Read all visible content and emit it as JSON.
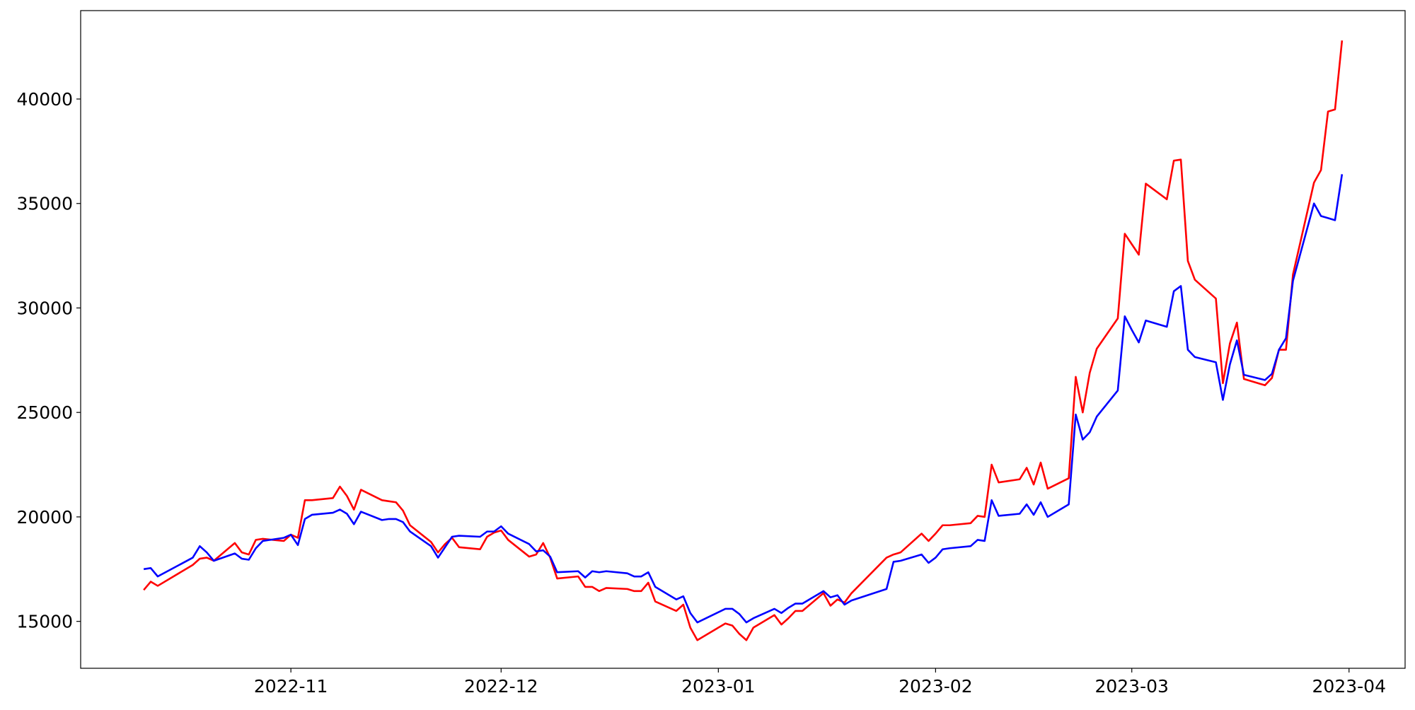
{
  "chart_data": {
    "type": "line",
    "x": [
      "2022-10-11",
      "2022-10-12",
      "2022-10-13",
      "2022-10-18",
      "2022-10-19",
      "2022-10-20",
      "2022-10-21",
      "2022-10-24",
      "2022-10-25",
      "2022-10-26",
      "2022-10-27",
      "2022-10-28",
      "2022-10-31",
      "2022-11-01",
      "2022-11-02",
      "2022-11-03",
      "2022-11-04",
      "2022-11-07",
      "2022-11-08",
      "2022-11-09",
      "2022-11-10",
      "2022-11-11",
      "2022-11-14",
      "2022-11-15",
      "2022-11-16",
      "2022-11-17",
      "2022-11-18",
      "2022-11-21",
      "2022-11-22",
      "2022-11-23",
      "2022-11-24",
      "2022-11-25",
      "2022-11-28",
      "2022-11-29",
      "2022-11-30",
      "2022-12-01",
      "2022-12-02",
      "2022-12-05",
      "2022-12-06",
      "2022-12-07",
      "2022-12-08",
      "2022-12-09",
      "2022-12-12",
      "2022-12-13",
      "2022-12-14",
      "2022-12-15",
      "2022-12-16",
      "2022-12-19",
      "2022-12-20",
      "2022-12-21",
      "2022-12-22",
      "2022-12-23",
      "2022-12-26",
      "2022-12-27",
      "2022-12-28",
      "2022-12-29",
      "2023-01-02",
      "2023-01-03",
      "2023-01-04",
      "2023-01-05",
      "2023-01-06",
      "2023-01-09",
      "2023-01-10",
      "2023-01-11",
      "2023-01-12",
      "2023-01-13",
      "2023-01-16",
      "2023-01-17",
      "2023-01-18",
      "2023-01-19",
      "2023-01-20",
      "2023-01-25",
      "2023-01-26",
      "2023-01-27",
      "2023-01-30",
      "2023-01-31",
      "2023-02-01",
      "2023-02-02",
      "2023-02-03",
      "2023-02-06",
      "2023-02-07",
      "2023-02-08",
      "2023-02-09",
      "2023-02-10",
      "2023-02-13",
      "2023-02-14",
      "2023-02-15",
      "2023-02-16",
      "2023-02-17",
      "2023-02-20",
      "2023-02-21",
      "2023-02-22",
      "2023-02-23",
      "2023-02-24",
      "2023-02-27",
      "2023-02-28",
      "2023-03-01",
      "2023-03-02",
      "2023-03-03",
      "2023-03-06",
      "2023-03-07",
      "2023-03-08",
      "2023-03-09",
      "2023-03-10",
      "2023-03-13",
      "2023-03-14",
      "2023-03-15",
      "2023-03-16",
      "2023-03-17",
      "2023-03-20",
      "2023-03-21",
      "2023-03-22",
      "2023-03-23",
      "2023-03-24",
      "2023-03-27",
      "2023-03-28",
      "2023-03-29",
      "2023-03-30",
      "2023-03-31"
    ],
    "series": [
      {
        "color": "#ff0000",
        "values": [
          16500,
          16900,
          16700,
          17700,
          18000,
          18050,
          17900,
          18750,
          18300,
          18200,
          18900,
          18950,
          18850,
          19150,
          19000,
          20800,
          20800,
          20900,
          21450,
          21000,
          20350,
          21300,
          20800,
          20750,
          20700,
          20300,
          19600,
          18800,
          18300,
          18700,
          19000,
          18550,
          18450,
          19050,
          19250,
          19350,
          18900,
          18100,
          18200,
          18750,
          18050,
          17050,
          17150,
          16650,
          16650,
          16450,
          16600,
          16550,
          16450,
          16450,
          16850,
          15950,
          15500,
          15800,
          14700,
          14100,
          14900,
          14800,
          14400,
          14100,
          14700,
          15300,
          14850,
          15150,
          15500,
          15500,
          16350,
          15750,
          16050,
          15900,
          16350,
          18050,
          18200,
          18300,
          19200,
          18850,
          19200,
          19600,
          19600,
          19700,
          20050,
          20000,
          22500,
          21650,
          21800,
          22350,
          21550,
          22600,
          21350,
          21850,
          26700,
          25000,
          26900,
          28050,
          29500,
          33550,
          33050,
          32550,
          35950,
          35200,
          37050,
          37100,
          32250,
          31350,
          30450,
          26400,
          28300,
          29300,
          26600,
          26300,
          26650,
          28000,
          28000,
          31600,
          36000,
          36600,
          39400,
          39500,
          42800
        ]
      },
      {
        "color": "#0000ff",
        "values": [
          17500,
          17550,
          17150,
          18050,
          18600,
          18300,
          17900,
          18250,
          18000,
          17950,
          18500,
          18850,
          19000,
          19150,
          18650,
          19900,
          20100,
          20200,
          20350,
          20150,
          19650,
          20250,
          19850,
          19900,
          19900,
          19750,
          19300,
          18600,
          18050,
          18550,
          19050,
          19100,
          19050,
          19300,
          19300,
          19550,
          19200,
          18700,
          18350,
          18400,
          18100,
          17350,
          17400,
          17100,
          17400,
          17350,
          17400,
          17300,
          17150,
          17150,
          17350,
          16650,
          16050,
          16200,
          15400,
          14950,
          15600,
          15600,
          15350,
          14950,
          15150,
          15600,
          15400,
          15650,
          15850,
          15850,
          16450,
          16150,
          16250,
          15800,
          16000,
          16550,
          17850,
          17900,
          18200,
          17800,
          18050,
          18450,
          18500,
          18600,
          18900,
          18850,
          20800,
          20050,
          20150,
          20600,
          20100,
          20700,
          20000,
          20600,
          24900,
          23700,
          24050,
          24800,
          26050,
          29600,
          28950,
          28350,
          29400,
          29100,
          30800,
          31050,
          28000,
          27650,
          27400,
          25600,
          27300,
          28450,
          26800,
          26550,
          26850,
          28000,
          28550,
          31300,
          35000,
          34400,
          34300,
          34200,
          36400
        ]
      }
    ],
    "xlim": [
      "2022-10-02",
      "2023-04-09"
    ],
    "xticks": [
      {
        "value": "2022-11-01",
        "label": "2022-11"
      },
      {
        "value": "2022-12-01",
        "label": "2022-12"
      },
      {
        "value": "2023-01-01",
        "label": "2023-01"
      },
      {
        "value": "2023-02-01",
        "label": "2023-02"
      },
      {
        "value": "2023-03-01",
        "label": "2023-03"
      },
      {
        "value": "2023-04-01",
        "label": "2023-04"
      }
    ],
    "ylim": [
      12755,
      44231
    ],
    "yticks": [
      15000,
      20000,
      25000,
      30000,
      35000,
      40000
    ],
    "grid": false
  }
}
